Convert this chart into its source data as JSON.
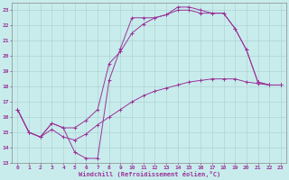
{
  "title": "",
  "xlabel": "Windchill (Refroidissement éolien,°C)",
  "ylabel": "",
  "background_color": "#c8ecec",
  "line_color": "#993399",
  "xlim": [
    -0.5,
    23.5
  ],
  "ylim": [
    13,
    23.5
  ],
  "yticks": [
    13,
    14,
    15,
    16,
    17,
    18,
    19,
    20,
    21,
    22,
    23
  ],
  "xticks": [
    0,
    1,
    2,
    3,
    4,
    5,
    6,
    7,
    8,
    9,
    10,
    11,
    12,
    13,
    14,
    15,
    16,
    17,
    18,
    19,
    20,
    21,
    22,
    23
  ],
  "curve1_x": [
    0,
    1,
    2,
    3,
    4,
    5,
    6,
    7,
    8,
    9,
    10,
    11,
    12,
    13,
    14,
    15,
    16,
    17,
    18,
    19,
    20,
    21,
    22,
    23
  ],
  "curve1_y": [
    16.5,
    15.0,
    14.7,
    15.6,
    15.3,
    13.7,
    13.3,
    13.3,
    18.4,
    20.5,
    22.5,
    22.5,
    22.5,
    22.7,
    23.2,
    23.2,
    23.0,
    22.8,
    22.8,
    21.8,
    20.4,
    18.3,
    18.1,
    18.1
  ],
  "curve2_x": [
    0,
    1,
    2,
    3,
    4,
    5,
    6,
    7,
    8,
    9,
    10,
    11,
    12,
    13,
    14,
    15,
    16,
    17,
    18,
    19,
    20,
    21,
    22,
    23
  ],
  "curve2_y": [
    16.5,
    15.0,
    14.7,
    15.6,
    15.3,
    15.3,
    15.8,
    16.5,
    19.5,
    20.3,
    21.5,
    22.1,
    22.5,
    22.7,
    23.0,
    23.0,
    22.8,
    22.8,
    22.8,
    21.8,
    20.4,
    18.3,
    18.1,
    18.1
  ],
  "curve3_x": [
    0,
    1,
    2,
    3,
    4,
    5,
    6,
    7,
    8,
    9,
    10,
    11,
    12,
    13,
    14,
    15,
    16,
    17,
    18,
    19,
    20,
    21,
    22,
    23
  ],
  "curve3_y": [
    16.5,
    15.0,
    14.7,
    15.2,
    14.7,
    14.5,
    14.9,
    15.5,
    16.0,
    16.5,
    17.0,
    17.4,
    17.7,
    17.9,
    18.1,
    18.3,
    18.4,
    18.5,
    18.5,
    18.5,
    18.3,
    18.2,
    18.1,
    18.1
  ]
}
